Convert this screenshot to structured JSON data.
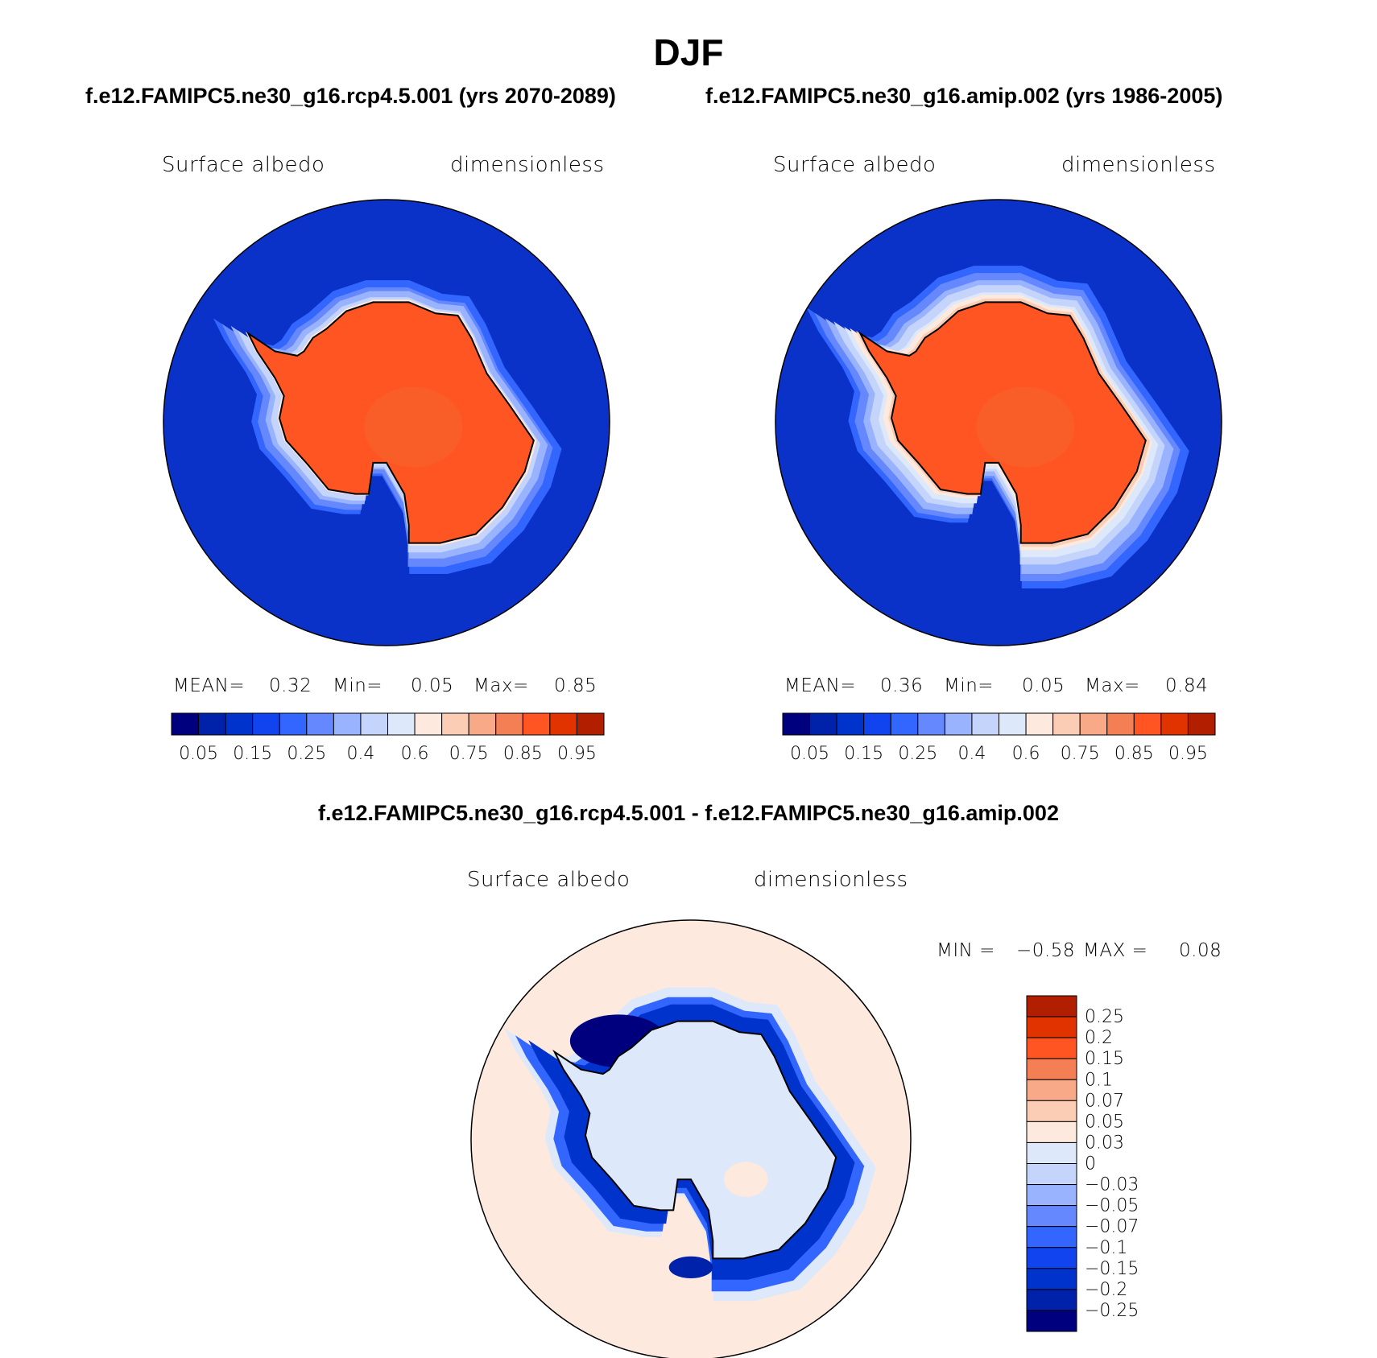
{
  "title": "DJF",
  "subtitle_left": "f.e12.FAMIPC5.ne30_g16.rcp4.5.001 (yrs 2070-2089)",
  "subtitle_right": "f.e12.FAMIPC5.ne30_g16.amip.002 (yrs 1986-2005)",
  "diff_title": "f.e12.FAMIPC5.ne30_g16.rcp4.5.001 - f.e12.FAMIPC5.ne30_g16.amip.002",
  "colors": {
    "abs_levels": [
      "#00007f",
      "#0022aa",
      "#0033cc",
      "#1144ee",
      "#3366ff",
      "#6688ff",
      "#99b3ff",
      "#c4d4fa",
      "#dde8fb",
      "#fde9dd",
      "#fbcdb4",
      "#f7a988",
      "#f47f55",
      "#ff5522",
      "#e03300",
      "#b21f00",
      "#7f0000"
    ],
    "diff_levels": [
      "#00007f",
      "#0022aa",
      "#0033cc",
      "#1144ee",
      "#3366ff",
      "#6688ff",
      "#99b3ff",
      "#c4d4fa",
      "#dde8fb",
      "#fde9dd",
      "#fbcdb4",
      "#f7a988",
      "#f47f55",
      "#ff5522",
      "#e03300",
      "#b21f00",
      "#7f0000"
    ],
    "ocean_abs": "#0a32c8",
    "land_abs": "#ff5522",
    "ocean_diff": "#fde9dd",
    "land_diff": "#dde8fb"
  },
  "chart_data": [
    {
      "type": "heatmap",
      "projection": "south-polar-stereographic",
      "panel": "rcp4.5 (yrs 2070-2089)",
      "variable_label": "Surface albedo",
      "units_label": "dimensionless",
      "stats": {
        "mean_label": "MEAN=",
        "mean": "0.32",
        "min_label": "Min=",
        "min": "0.05",
        "max_label": "Max=",
        "max": "0.85"
      },
      "colorbar": {
        "orientation": "horizontal",
        "n_colors": 16,
        "tick_labels": [
          "0.05",
          "0.15",
          "0.25",
          "0.4",
          "0.6",
          "0.75",
          "0.85",
          "0.95"
        ]
      }
    },
    {
      "type": "heatmap",
      "projection": "south-polar-stereographic",
      "panel": "amip (yrs 1986-2005)",
      "variable_label": "Surface albedo",
      "units_label": "dimensionless",
      "stats": {
        "mean_label": "MEAN=",
        "mean": "0.36",
        "min_label": "Min=",
        "min": "0.05",
        "max_label": "Max=",
        "max": "0.84"
      },
      "colorbar": {
        "orientation": "horizontal",
        "n_colors": 16,
        "tick_labels": [
          "0.05",
          "0.15",
          "0.25",
          "0.4",
          "0.6",
          "0.75",
          "0.85",
          "0.95"
        ]
      }
    },
    {
      "type": "heatmap",
      "projection": "south-polar-stereographic",
      "panel": "difference",
      "variable_label": "Surface albedo",
      "units_label": "dimensionless",
      "stats": {
        "min_label": "MIN =",
        "min": "−0.58",
        "max_label": "MAX =",
        "max": "0.08"
      },
      "colorbar": {
        "orientation": "vertical",
        "n_colors": 16,
        "tick_labels": [
          "0.25",
          "0.2",
          "0.15",
          "0.1",
          "0.07",
          "0.05",
          "0.03",
          "0",
          "−0.03",
          "−0.05",
          "−0.07",
          "−0.1",
          "−0.15",
          "−0.2",
          "−0.25"
        ]
      }
    }
  ]
}
